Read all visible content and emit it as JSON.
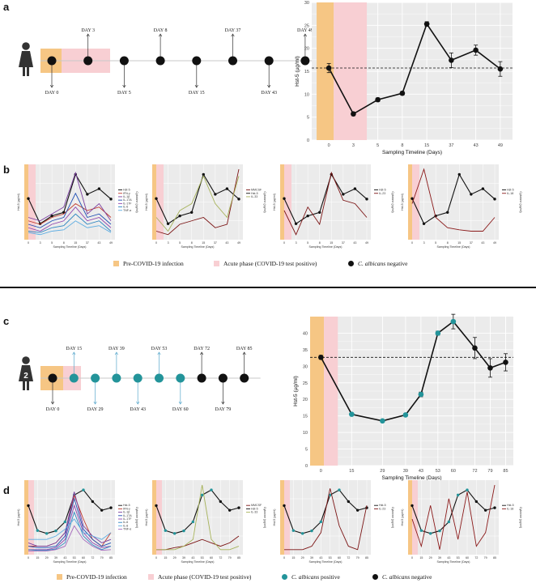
{
  "colors": {
    "pre_covid": "#f6c684",
    "acute": "#f8cfd3",
    "negative": "#111111",
    "positive": "#23949a",
    "line": "#111111",
    "plot_bg": "#ebebeb",
    "grid": "#ffffff",
    "timeline": "#c8c8c8",
    "arrow_up_positive": "#5aa8cc",
    "cytokine_colors": [
      "#111111",
      "#c0392b",
      "#7b3fa0",
      "#1f4fb4",
      "#8e44ad",
      "#2e86c1",
      "#5dade2",
      "#a569bd"
    ],
    "mmp_colors": [
      "#7b1414",
      "#111111",
      "#a6b25a"
    ],
    "il23_color": "#7b1414",
    "il18_color": "#8b1a1a"
  },
  "panel_labels": {
    "a": "a",
    "b": "b",
    "c": "c",
    "d": "d"
  },
  "patient1": {
    "timeline_days": [
      {
        "label": "DAY 0",
        "pos": "below"
      },
      {
        "label": "DAY 3",
        "pos": "above"
      },
      {
        "label": "DAY 5",
        "pos": "below"
      },
      {
        "label": "DAY 8",
        "pos": "above"
      },
      {
        "label": "DAY 15",
        "pos": "below"
      },
      {
        "label": "DAY 37",
        "pos": "above"
      },
      {
        "label": "DAY 43",
        "pos": "below"
      },
      {
        "label": "DAY 49",
        "pos": "above"
      }
    ],
    "badge": ""
  },
  "patient2": {
    "timeline_days": [
      {
        "label": "DAY 0",
        "pos": "below",
        "status": "neg"
      },
      {
        "label": "DAY 15",
        "pos": "above",
        "status": "pos"
      },
      {
        "label": "DAY 29",
        "pos": "below",
        "status": "pos"
      },
      {
        "label": "DAY 39",
        "pos": "above",
        "status": "pos"
      },
      {
        "label": "DAY 43",
        "pos": "below",
        "status": "pos"
      },
      {
        "label": "DAY 53",
        "pos": "above",
        "status": "pos"
      },
      {
        "label": "DAY 60",
        "pos": "below",
        "status": "pos"
      },
      {
        "label": "DAY 72",
        "pos": "above",
        "status": "neg"
      },
      {
        "label": "DAY 79",
        "pos": "below",
        "status": "neg"
      },
      {
        "label": "DAY 85",
        "pos": "above",
        "status": "neg"
      }
    ],
    "badge": "2"
  },
  "chart_data": [
    {
      "id": "a",
      "type": "line",
      "xlabel": "Sampling Timeline (Days)",
      "ylabel": "Hst-5 (µg/ml)",
      "ylim": [
        0,
        30
      ],
      "yticks": [
        0,
        5,
        10,
        15,
        20,
        25,
        30
      ],
      "x_index": [
        0,
        1,
        2,
        3,
        4,
        5,
        6,
        7
      ],
      "x_ticklabels": [
        "0",
        "3",
        "5",
        "8",
        "15",
        "37",
        "43",
        "49"
      ],
      "values": [
        15.7,
        5.7,
        8.8,
        10.2,
        25.3,
        17.4,
        19.6,
        15.5
      ],
      "errors": [
        1.0,
        0.4,
        0.4,
        0.4,
        0.5,
        1.6,
        1.1,
        1.6
      ],
      "status": [
        "neg",
        "neg",
        "neg",
        "neg",
        "neg",
        "neg",
        "neg",
        "neg"
      ],
      "reference_line": 15.7,
      "pre_covid_band": [
        -0.5,
        0.2
      ],
      "acute_band": [
        0.2,
        1.55
      ]
    },
    {
      "id": "c",
      "type": "line",
      "xlabel": "Sampling Timeline (Days)",
      "ylabel": "Hst-5 (µg/ml)",
      "ylim": [
        0,
        45
      ],
      "yticks": [
        0,
        5,
        10,
        15,
        20,
        25,
        30,
        35,
        40
      ],
      "x_index": [
        0,
        2,
        4,
        5.5,
        6.5,
        7.6,
        8.6,
        10,
        11,
        12
      ],
      "x_ticklabels": [
        "0",
        "15",
        "29",
        "39",
        "43",
        "53",
        "60",
        "72",
        "79",
        "85"
      ],
      "values": [
        32.7,
        15.5,
        13.5,
        15.3,
        21.5,
        40.0,
        43.5,
        35.5,
        29.5,
        31.2
      ],
      "errors": [
        0.6,
        0.3,
        0.3,
        0.4,
        0.7,
        0.6,
        2.2,
        3.2,
        2.8,
        2.6
      ],
      "status": [
        "neg",
        "pos",
        "pos",
        "pos",
        "pos",
        "pos",
        "pos",
        "neg",
        "neg",
        "neg"
      ],
      "reference_line": 32.7,
      "pre_covid_band": [
        -0.7,
        0.2
      ],
      "acute_band": [
        0.2,
        1.1
      ]
    },
    {
      "id": "b",
      "type": "line",
      "ylabel": "Hst-5 (µg/ml)",
      "xlabel": "Sampling Timeline (Days)",
      "y2label": "Cytokine (pg/ml)",
      "x_ticklabels": [
        "0",
        "3",
        "5",
        "8",
        "15",
        "37",
        "43",
        "49"
      ],
      "subplots": [
        {
          "name": "cytokines",
          "legend": [
            "Hst-5",
            "IFN-γ",
            "IL-1β",
            "IL-17A",
            "IL-17F",
            "IL-6",
            "TNF-α"
          ],
          "series": [
            {
              "name": "Hst-5",
              "values": [
                15.7,
                5.7,
                8.8,
                10.2,
                25.3,
                17.4,
                19.6,
                15.5
              ]
            },
            {
              "name": "IFN-γ",
              "values": [
                0.25,
                0.2,
                0.3,
                0.35,
                0.5,
                0.4,
                0.45,
                0.3
              ]
            },
            {
              "name": "IL-1β",
              "values": [
                0.3,
                0.25,
                0.35,
                0.45,
                0.95,
                0.35,
                0.5,
                0.25
              ]
            },
            {
              "name": "IL-17A",
              "values": [
                0.2,
                0.15,
                0.25,
                0.3,
                0.65,
                0.3,
                0.35,
                0.2
              ]
            },
            {
              "name": "IL-17F",
              "values": [
                0.15,
                0.1,
                0.2,
                0.25,
                0.45,
                0.25,
                0.3,
                0.15
              ]
            },
            {
              "name": "IL-6",
              "values": [
                0.1,
                0.08,
                0.15,
                0.18,
                0.35,
                0.2,
                0.25,
                0.1
              ]
            },
            {
              "name": "TNF-α",
              "values": [
                0.08,
                0.05,
                0.1,
                0.12,
                0.25,
                0.15,
                0.18,
                0.08
              ]
            }
          ]
        },
        {
          "name": "mmp",
          "legend": [
            "MMCSF",
            "Hst-5",
            "IL-33"
          ],
          "series": [
            {
              "name": "Hst-5",
              "values": [
                15.7,
                5.7,
                8.8,
                10.2,
                25.3,
                17.4,
                19.6,
                15.5
              ]
            },
            {
              "name": "MMCSF",
              "values": [
                0.1,
                0.05,
                0.2,
                0.25,
                0.3,
                0.15,
                0.2,
                1.0
              ]
            },
            {
              "name": "IL-33",
              "values": [
                0.3,
                0.1,
                0.4,
                0.5,
                0.9,
                0.5,
                0.3,
                0.9
              ]
            }
          ]
        },
        {
          "name": "il23",
          "legend": [
            "Hst-5",
            "IL-23"
          ],
          "series": [
            {
              "name": "Hst-5",
              "values": [
                15.7,
                5.7,
                8.8,
                10.2,
                25.3,
                17.4,
                19.6,
                15.5
              ]
            },
            {
              "name": "IL-23",
              "values": [
                0.4,
                0.05,
                0.45,
                0.2,
                0.95,
                0.55,
                0.5,
                0.3
              ]
            }
          ]
        },
        {
          "name": "il18",
          "legend": [
            "Hst-5",
            "IL-18"
          ],
          "series": [
            {
              "name": "Hst-5",
              "values": [
                15.7,
                5.7,
                8.8,
                10.2,
                25.3,
                17.4,
                19.6,
                15.5
              ]
            },
            {
              "name": "IL-18",
              "values": [
                0.5,
                1.0,
                0.3,
                0.15,
                0.12,
                0.1,
                0.1,
                0.3
              ]
            }
          ]
        }
      ]
    },
    {
      "id": "d",
      "type": "line",
      "ylabel": "Hst-5 (µg/ml)",
      "xlabel": "Sampling Timeline (Days)",
      "y2label": "Cytokine (pg/ml)",
      "x_ticklabels": [
        "0",
        "15",
        "29",
        "39",
        "43",
        "53",
        "60",
        "72",
        "79",
        "85"
      ],
      "subplots": [
        {
          "name": "cytokines",
          "legend": [
            "Hst-5",
            "IFN-γ",
            "IL-1β",
            "IL-17A",
            "IL-17F",
            "IL-6",
            "IL-8",
            "TNF-α"
          ],
          "series": [
            {
              "name": "Hst-5",
              "values": [
                32.7,
                15.5,
                13.5,
                15.3,
                21.5,
                40.0,
                43.5,
                35.5,
                29.5,
                31.2
              ]
            },
            {
              "name": "IFN-γ",
              "values": [
                0.1,
                0.1,
                0.1,
                0.15,
                0.3,
                0.85,
                0.5,
                0.2,
                0.1,
                0.3
              ]
            },
            {
              "name": "IL-1β",
              "values": [
                0.15,
                0.1,
                0.1,
                0.15,
                0.3,
                0.9,
                0.4,
                0.25,
                0.15,
                0.2
              ]
            },
            {
              "name": "IL-17A",
              "values": [
                0.1,
                0.08,
                0.08,
                0.1,
                0.25,
                0.8,
                0.35,
                0.2,
                0.1,
                0.15
              ]
            },
            {
              "name": "IL-17F",
              "values": [
                0.05,
                0.05,
                0.05,
                0.08,
                0.2,
                0.7,
                0.3,
                0.15,
                0.08,
                0.1
              ]
            },
            {
              "name": "IL-6",
              "values": [
                0.05,
                0.04,
                0.04,
                0.06,
                0.15,
                0.6,
                0.25,
                0.12,
                0.05,
                0.1
              ]
            },
            {
              "name": "IL-8",
              "values": [
                0.2,
                0.2,
                0.2,
                0.25,
                0.35,
                0.5,
                0.3,
                0.25,
                0.2,
                0.3
              ]
            },
            {
              "name": "TNF-α",
              "values": [
                0.03,
                0.03,
                0.03,
                0.05,
                0.1,
                0.4,
                0.2,
                0.1,
                0.04,
                0.05
              ]
            }
          ]
        },
        {
          "name": "mmp",
          "legend": [
            "MMCSF",
            "Hst-5",
            "IL-33"
          ],
          "series": [
            {
              "name": "Hst-5",
              "values": [
                32.7,
                15.5,
                13.5,
                15.3,
                21.5,
                40.0,
                43.5,
                35.5,
                29.5,
                31.2
              ]
            },
            {
              "name": "MMCSF",
              "values": [
                0.05,
                0.05,
                0.08,
                0.1,
                0.15,
                0.2,
                0.15,
                0.1,
                0.15,
                0.25
              ]
            },
            {
              "name": "IL-33",
              "values": [
                0.05,
                0.05,
                0.05,
                0.1,
                0.2,
                1.0,
                0.2,
                0.05,
                0.05,
                0.1
              ]
            }
          ]
        },
        {
          "name": "il23",
          "legend": [
            "Hst-5",
            "IL-23"
          ],
          "series": [
            {
              "name": "Hst-5",
              "values": [
                32.7,
                15.5,
                13.5,
                15.3,
                21.5,
                40.0,
                43.5,
                35.5,
                29.5,
                31.2
              ]
            },
            {
              "name": "IL-23",
              "values": [
                0.05,
                0.05,
                0.05,
                0.1,
                0.3,
                0.95,
                0.4,
                0.1,
                0.05,
                0.7
              ]
            }
          ]
        },
        {
          "name": "il18",
          "legend": [
            "Hst-5",
            "IL-18"
          ],
          "series": [
            {
              "name": "Hst-5",
              "values": [
                32.7,
                15.5,
                13.5,
                15.3,
                21.5,
                40.0,
                43.5,
                35.5,
                29.5,
                31.2
              ]
            },
            {
              "name": "IL-18",
              "values": [
                0.5,
                0.1,
                0.7,
                0.05,
                0.8,
                0.2,
                0.9,
                0.1,
                0.3,
                1.0
              ]
            }
          ]
        }
      ]
    }
  ],
  "legend_top": [
    {
      "kind": "square",
      "color_key": "pre_covid",
      "label": "Pre-COVID-19 infection"
    },
    {
      "kind": "square",
      "color_key": "acute",
      "label": "Acute phase (COVID-19 test positive)"
    },
    {
      "kind": "dot",
      "color_key": "negative",
      "label_prefix": "C. albicans",
      "label_suffix": "negative"
    }
  ],
  "legend_bottom": [
    {
      "kind": "square",
      "color_key": "pre_covid",
      "label": "Pre-COVID-19 infection"
    },
    {
      "kind": "square",
      "color_key": "acute",
      "label": "Acute phase (COVID-19 test positive)"
    },
    {
      "kind": "dot",
      "color_key": "positive",
      "label_prefix": "C. albicans",
      "label_suffix": "positive"
    },
    {
      "kind": "dot",
      "color_key": "negative",
      "label_prefix": "C. albicans",
      "label_suffix": "negative"
    }
  ]
}
